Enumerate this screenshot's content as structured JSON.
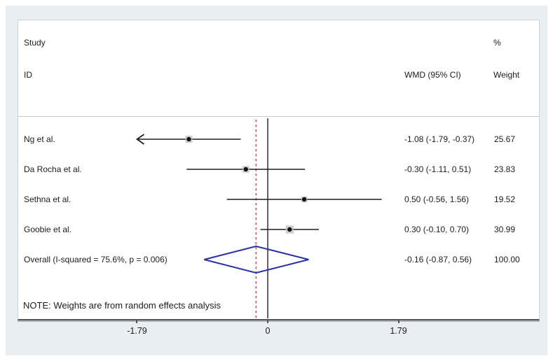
{
  "header": {
    "study": "Study",
    "id": "ID",
    "percent": "%",
    "wmd_ci": "WMD (95% CI)",
    "weight": "Weight"
  },
  "note": "NOTE: Weights are from random effects analysis",
  "chart_data": {
    "type": "forest",
    "effect_measure": "WMD",
    "x_ticks": [
      -1.79,
      0,
      1.79
    ],
    "x_tick_labels": [
      "-1.79",
      "0",
      "1.79"
    ],
    "zero_line_x": 0,
    "overall_dashed_line_x": -0.16,
    "studies": [
      {
        "label": "Ng et al.",
        "wmd": -1.08,
        "ci_low": -1.79,
        "ci_high": -0.37,
        "wmd_text": "-1.08 (-1.79, -0.37)",
        "weight": 25.67,
        "weight_text": "25.67",
        "arrow_low": true
      },
      {
        "label": "Da Rocha et al.",
        "wmd": -0.3,
        "ci_low": -1.11,
        "ci_high": 0.51,
        "wmd_text": "-0.30 (-1.11, 0.51)",
        "weight": 23.83,
        "weight_text": "23.83",
        "arrow_low": false
      },
      {
        "label": "Sethna et al.",
        "wmd": 0.5,
        "ci_low": -0.56,
        "ci_high": 1.56,
        "wmd_text": "0.50 (-0.56, 1.56)",
        "weight": 19.52,
        "weight_text": "19.52",
        "arrow_low": false
      },
      {
        "label": "Goobie et al.",
        "wmd": 0.3,
        "ci_low": -0.1,
        "ci_high": 0.7,
        "wmd_text": "0.30 (-0.10, 0.70)",
        "weight": 30.99,
        "weight_text": "30.99",
        "arrow_low": false
      }
    ],
    "overall": {
      "label": "Overall  (I-squared = 75.6%, p = 0.006)",
      "wmd": -0.16,
      "ci_low": -0.87,
      "ci_high": 0.56,
      "wmd_text": "-0.16 (-0.87, 0.56)",
      "weight_text": "100.00"
    },
    "colors": {
      "diamond": "#2b2fa8",
      "overall_dashed": "#c4595c",
      "ci_line": "#1f1f1f",
      "marker_dot": "#111111",
      "marker_box": "#c3c3c3",
      "axis": "#53575b",
      "panel_background": "#e8eef1",
      "text": "#1c1c1c"
    }
  }
}
